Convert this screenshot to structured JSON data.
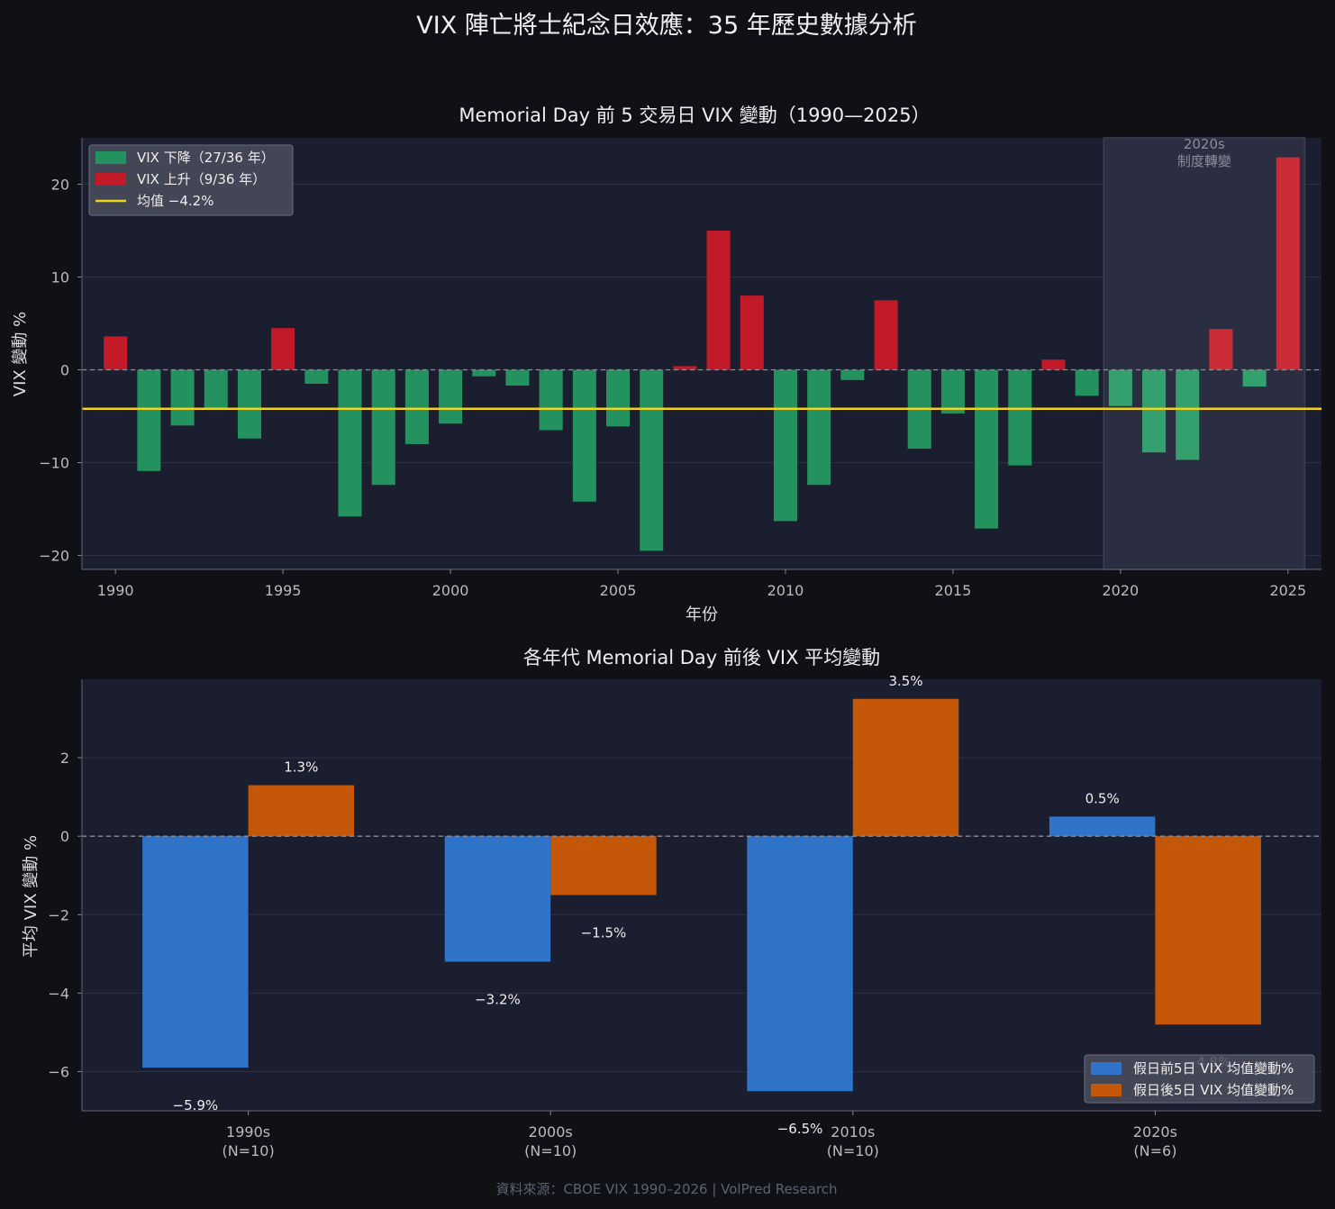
{
  "figure": {
    "suptitle": "VIX 陣亡將士紀念日效應：35 年歷史數據分析",
    "source": "資料來源：CBOE VIX 1990–2026 | VolPred Research"
  },
  "colors": {
    "background": "#0f1116",
    "panel": "#1b1e2e",
    "grid": "#2c3040",
    "fall": "#23925f",
    "fall_recent": "#33a06e",
    "rise": "#c21a28",
    "rise_recent": "#cc2c38",
    "mean": "#f2d21b",
    "before": "#2f74c9",
    "after": "#c55708",
    "regime_band": "#2a2e40"
  },
  "chart_data": [
    {
      "type": "bar",
      "title": "Memorial Day 前 5 交易日 VIX 變動（1990—2025）",
      "xlabel": "年份",
      "ylabel": "VIX 變動 %",
      "xlim": [
        1989,
        2026
      ],
      "ylim": [
        -21.5,
        25
      ],
      "xticks": [
        1990,
        1995,
        2000,
        2005,
        2010,
        2015,
        2020,
        2025
      ],
      "xtick_labels": [
        "1990",
        "1995",
        "2000",
        "2005",
        "2010",
        "2015",
        "2020",
        "2025"
      ],
      "yticks": [
        -20,
        -10,
        0,
        10,
        20
      ],
      "ytick_labels": [
        "−20",
        "−10",
        "0",
        "10",
        "20"
      ],
      "grid": true,
      "legend_position": "top-left",
      "legend": [
        "VIX 下降（27/36 年）",
        "VIX 上升（9/36 年）",
        "均值 −4.2%"
      ],
      "mean": -4.2,
      "x": [
        1990,
        1991,
        1992,
        1993,
        1994,
        1995,
        1996,
        1997,
        1998,
        1999,
        2000,
        2001,
        2002,
        2003,
        2004,
        2005,
        2006,
        2007,
        2008,
        2009,
        2010,
        2011,
        2012,
        2013,
        2014,
        2015,
        2016,
        2017,
        2018,
        2019,
        2020,
        2021,
        2022,
        2023,
        2024,
        2025
      ],
      "values": [
        3.6,
        -10.9,
        -6.0,
        -4.2,
        -7.4,
        4.5,
        -1.5,
        -15.8,
        -12.4,
        -8.0,
        -5.8,
        -0.7,
        -1.7,
        -6.5,
        -14.2,
        -6.1,
        -19.5,
        0.4,
        15.0,
        8.0,
        -16.3,
        -12.4,
        -1.1,
        7.5,
        -8.5,
        -4.7,
        -17.1,
        -10.3,
        1.1,
        -2.8,
        -3.9,
        -8.9,
        -9.7,
        4.4,
        -1.8,
        22.9
      ],
      "annotation": {
        "x_range": [
          2019.5,
          2025.5
        ],
        "text": "2020s\n制度轉變"
      }
    },
    {
      "type": "bar",
      "title": "各年代 Memorial Day 前後 VIX 平均變動",
      "ylabel": "平均 VIX 變動 %",
      "categories": [
        "1990s\n(N=10)",
        "2000s\n(N=10)",
        "2010s\n(N=10)",
        "2020s\n(N=6)"
      ],
      "series": [
        {
          "name": "假日前5日 VIX 均值變動%",
          "values": [
            -5.9,
            -3.2,
            -6.5,
            0.5
          ],
          "labels": [
            "−5.9%",
            "−3.2%",
            "−6.5%",
            "0.5%"
          ]
        },
        {
          "name": "假日後5日 VIX 均值變動%",
          "values": [
            1.3,
            -1.5,
            3.5,
            -4.8
          ],
          "labels": [
            "1.3%",
            "−1.5%",
            "3.5%",
            "−4.8%"
          ]
        }
      ],
      "ylim": [
        -7.0,
        4.0
      ],
      "yticks": [
        -6,
        -4,
        -2,
        0,
        2
      ],
      "ytick_labels": [
        "−6",
        "−4",
        "−2",
        "0",
        "2"
      ],
      "grid": true,
      "legend_position": "bottom-right"
    }
  ]
}
